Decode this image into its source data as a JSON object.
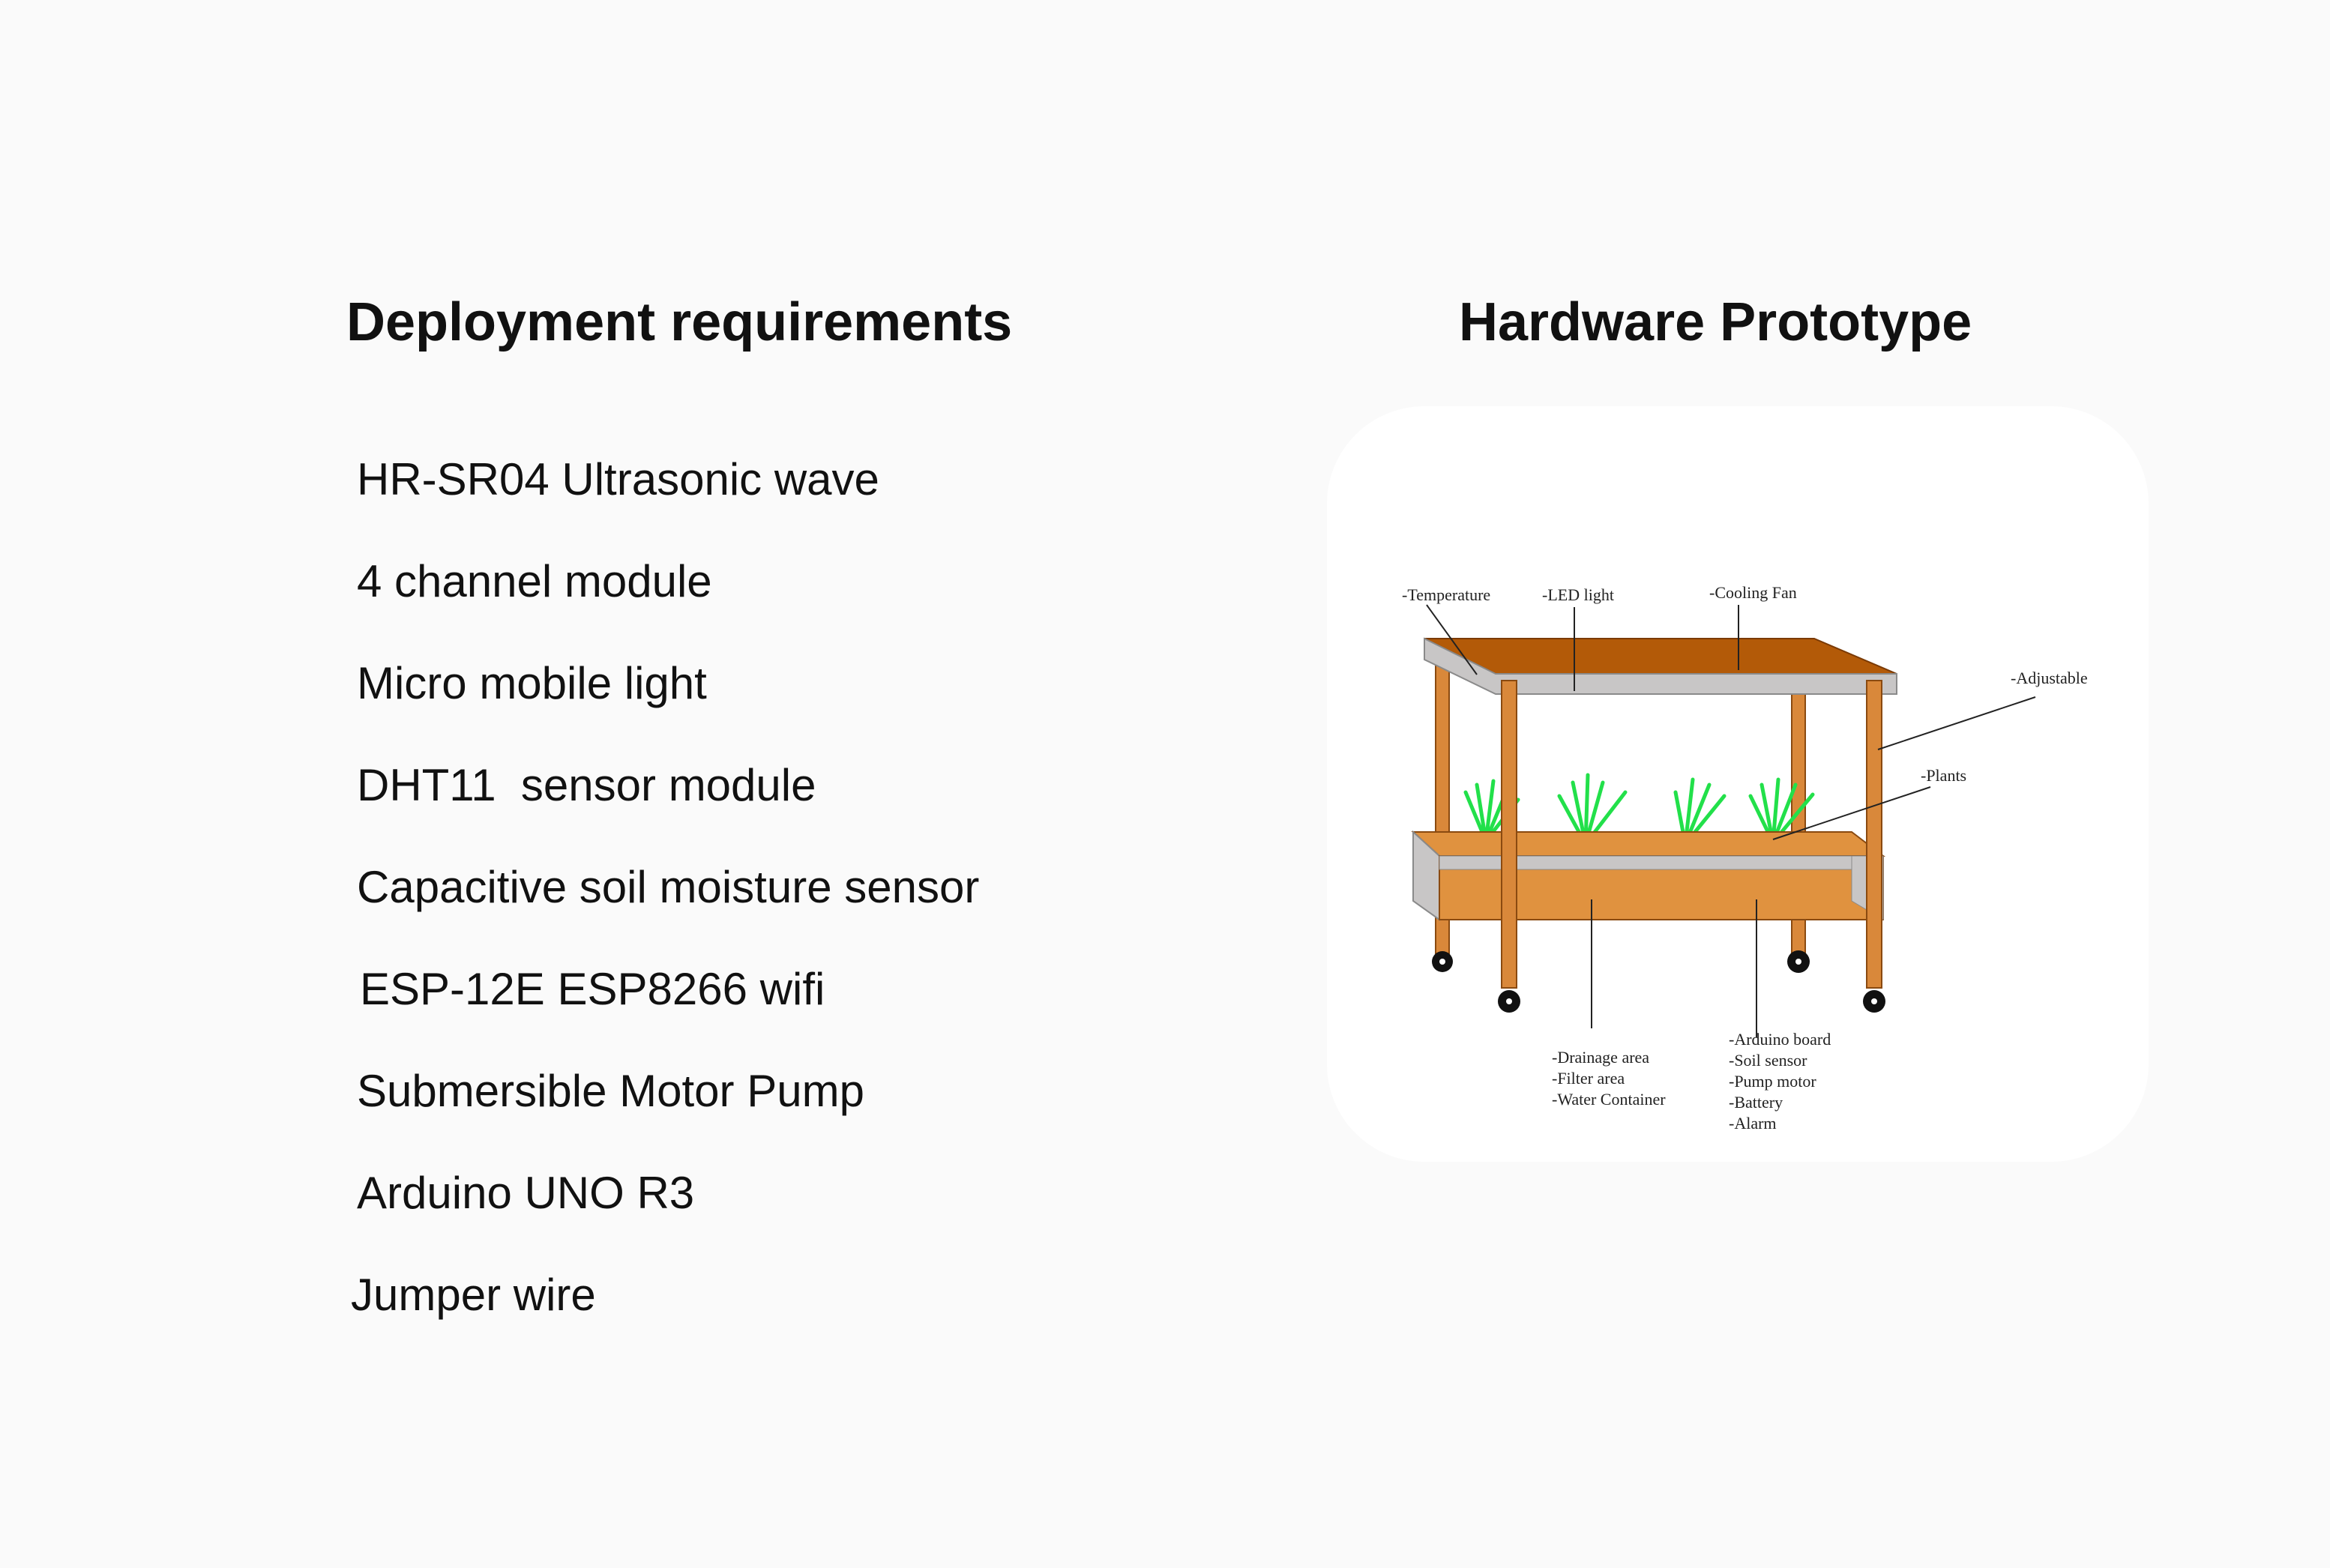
{
  "left": {
    "heading": "Deployment requirements",
    "items": [
      "HR-SR04 Ultrasonic wave",
      "4 channel module",
      "Micro mobile light",
      "DHT11  sensor module",
      "Capacitive soil moisture sensor",
      "ESP-12E ESP8266 wifi",
      "Submersible Motor Pump",
      "Arduino UNO R3",
      "Jumper wire"
    ]
  },
  "right": {
    "heading": "Hardware Prototype",
    "labels": {
      "temperature": "-Temperature",
      "led": "-LED light",
      "fan": "-Cooling Fan",
      "adjustable": "-Adjustable",
      "plants": "-Plants",
      "drainage": "-Drainage area",
      "filter": "-Filter area",
      "water": "-Water Container",
      "arduino": "-Arduino board",
      "soil": "-Soil sensor",
      "pump": "-Pump motor",
      "battery": "-Battery",
      "alarm": "-Alarm"
    }
  },
  "colors": {
    "wood_top": "#b35a08",
    "wood": "#e0923f",
    "leg": "#d9883a",
    "metal": "#c8c6c6",
    "plant": "#22e04a"
  }
}
